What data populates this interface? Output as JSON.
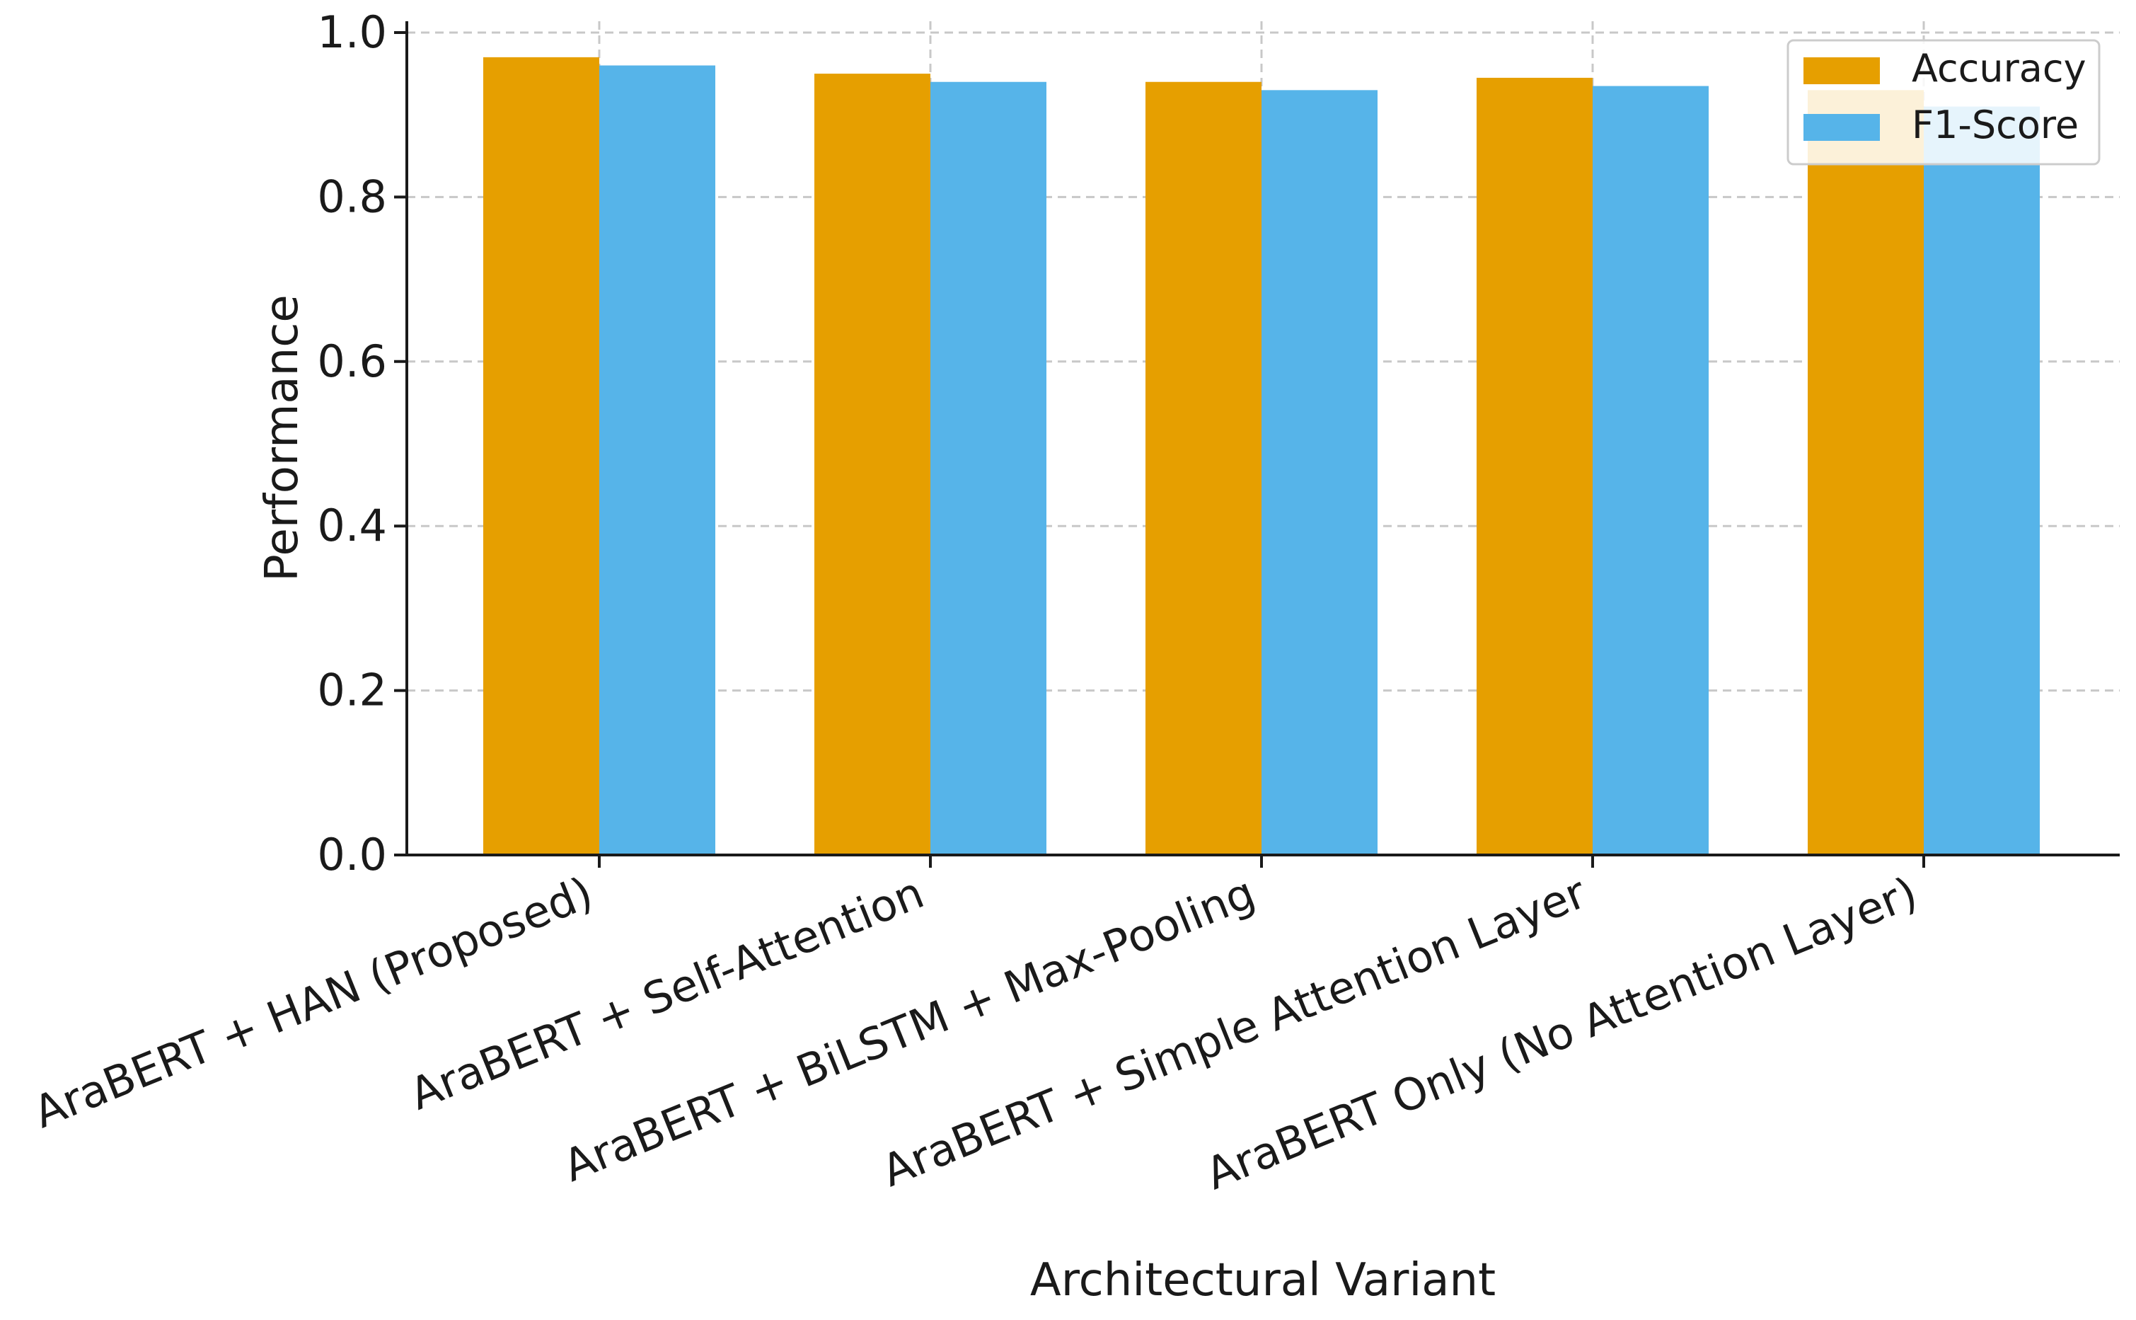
{
  "chart_data": {
    "type": "bar",
    "title": "",
    "xlabel": "Architectural Variant",
    "ylabel": "Performance",
    "ylim": [
      0,
      1.0
    ],
    "yticks": [
      "0.0",
      "0.2",
      "0.4",
      "0.6",
      "0.8",
      "1.0"
    ],
    "ytick_values": [
      0.0,
      0.2,
      0.4,
      0.6,
      0.8,
      1.0
    ],
    "grid": true,
    "legend_position": "top-right",
    "categories": [
      "AraBERT + HAN (Proposed)",
      "AraBERT + Self-Attention",
      "AraBERT + BiLSTM + Max-Pooling",
      "AraBERT + Simple Attention Layer",
      "AraBERT Only (No Attention Layer)"
    ],
    "series": [
      {
        "name": "Accuracy",
        "color": "#E69F00",
        "values": [
          0.97,
          0.95,
          0.94,
          0.945,
          0.93
        ]
      },
      {
        "name": "F1-Score",
        "color": "#56B4E9",
        "values": [
          0.96,
          0.94,
          0.93,
          0.935,
          0.91
        ]
      }
    ]
  }
}
